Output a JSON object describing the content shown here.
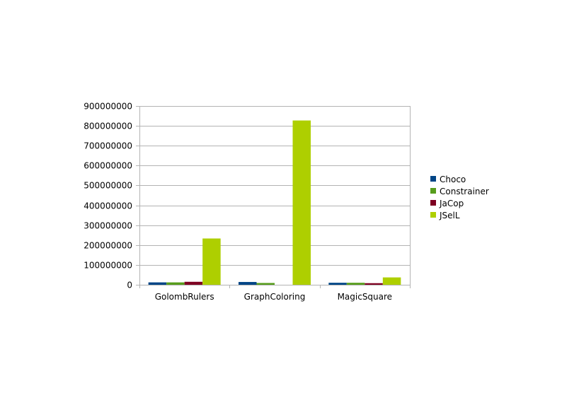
{
  "chart_data": {
    "type": "bar",
    "title": "",
    "xlabel": "",
    "ylabel": "",
    "categories": [
      "GolombRulers",
      "GraphColoring",
      "MagicSquare"
    ],
    "series": [
      {
        "name": "Choco",
        "color": "#004586",
        "values": [
          12000000,
          14000000,
          10000000
        ]
      },
      {
        "name": "Constrainer",
        "color": "#579d1c",
        "values": [
          12000000,
          9000000,
          10000000
        ]
      },
      {
        "name": "JaCop",
        "color": "#7e0021",
        "values": [
          15000000,
          0,
          8000000
        ]
      },
      {
        "name": "JSelL",
        "color": "#aecf00",
        "values": [
          233000000,
          827000000,
          37000000
        ]
      }
    ],
    "ylim": [
      0,
      900000000
    ],
    "yticks": [
      "0",
      "100000000",
      "200000000",
      "300000000",
      "400000000",
      "500000000",
      "600000000",
      "700000000",
      "800000000",
      "900000000"
    ],
    "grid": true,
    "legend_position": "right"
  }
}
